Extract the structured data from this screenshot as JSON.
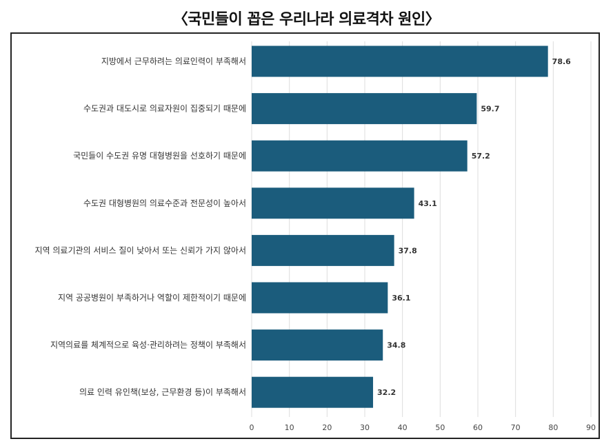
{
  "chart_data": {
    "type": "bar",
    "orientation": "horizontal",
    "title": "〈국민들이 꼽은 우리나라 의료격차 원인〉",
    "categories": [
      "지방에서 근무하려는 의료인력이 부족해서",
      "수도권과 대도시로 의료자원이 집중되기 때문에",
      "국민들이 수도권 유명 대형병원을 선호하기 때문에",
      "수도권 대형병원의 의료수준과 전문성이 높아서",
      "지역 의료기관의 서비스 질이 낮아서 또는 신뢰가 가지 않아서",
      "지역 공공병원이 부족하거나 역할이 제한적이기 때문에",
      "지역의료를 체계적으로 육성·관리하려는 정책이 부족해서",
      "의료 인력 유인책(보상, 근무환경 등)이 부족해서"
    ],
    "values": [
      78.6,
      59.7,
      57.2,
      43.1,
      37.8,
      36.1,
      34.8,
      32.2
    ],
    "value_labels": [
      "78.6",
      "59.7",
      "57.2",
      "43.1",
      "37.8",
      "36.1",
      "34.8",
      "32.2"
    ],
    "xlim": [
      0,
      90
    ],
    "xticks": [
      "0",
      "10",
      "20",
      "30",
      "40",
      "50",
      "60",
      "70",
      "80",
      "90"
    ],
    "grid": true,
    "bar_color": "#1b5c7c",
    "xlabel": "",
    "ylabel": ""
  }
}
